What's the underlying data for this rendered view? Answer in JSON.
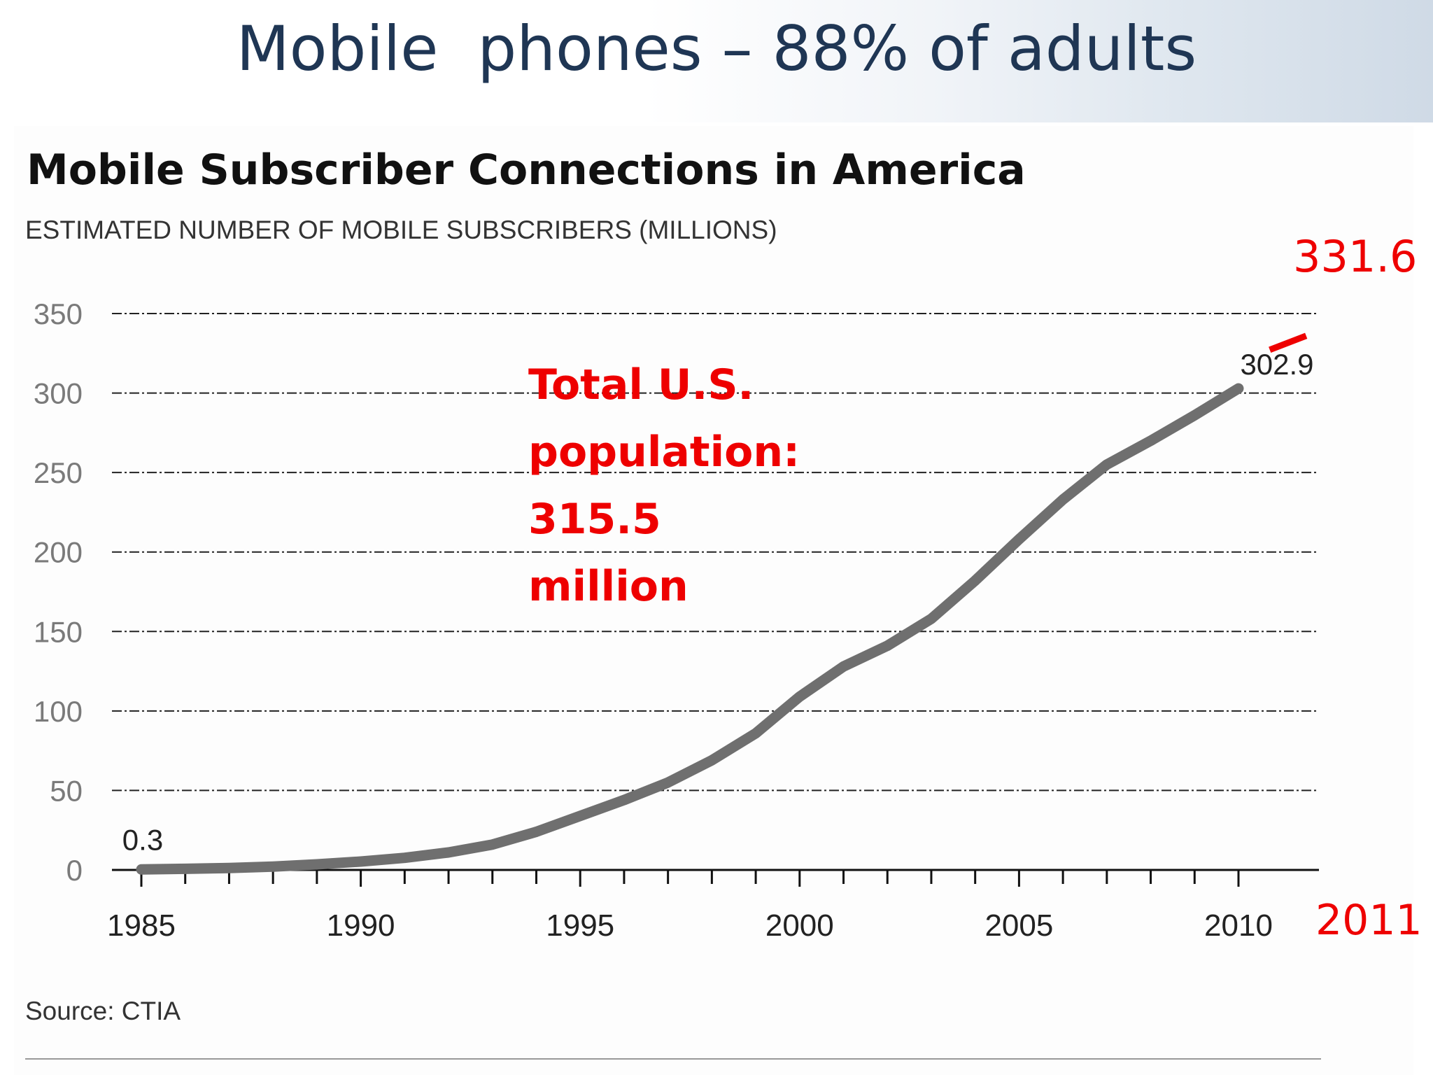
{
  "slide": {
    "title": "Mobile  phones – 88% of adults"
  },
  "chart_data": {
    "type": "line",
    "title": "Mobile Subscriber Connections in America",
    "subtitle": "ESTIMATED NUMBER OF MOBILE SUBSCRIBERS (MILLIONS)",
    "source": "Source: CTIA",
    "ylim": [
      0,
      350
    ],
    "yticks": [
      "0",
      "50",
      "100",
      "150",
      "200",
      "250",
      "300",
      "350"
    ],
    "xlim": [
      1985,
      2011
    ],
    "xtick_labels": [
      "1985",
      "1990",
      "1995",
      "2000",
      "2005",
      "2010"
    ],
    "grid": true,
    "series": [
      {
        "color": "#6f6f6f",
        "x": [
          1985,
          1986,
          1987,
          1988,
          1989,
          1990,
          1991,
          1992,
          1993,
          1994,
          1995,
          1996,
          1997,
          1998,
          1999,
          2000,
          2001,
          2002,
          2003,
          2004,
          2005,
          2006,
          2007,
          2008,
          2009,
          2010
        ],
        "values": [
          0.3,
          0.7,
          1.2,
          2.1,
          3.5,
          5.3,
          7.6,
          11,
          16,
          24,
          34,
          44,
          55,
          69,
          86,
          109,
          128,
          141,
          158,
          182,
          208,
          233,
          255,
          270,
          286,
          302.9
        ]
      }
    ],
    "data_labels": [
      {
        "x": 1985,
        "y": 0.3,
        "text": "0.3"
      },
      {
        "x": 2010,
        "y": 302.9,
        "text": "302.9"
      }
    ],
    "annotations": {
      "population": [
        "Total U.S.",
        "population:",
        "315.5",
        "million"
      ],
      "value_2011": "331.6",
      "year_2011": "2011",
      "color": "#ee0000"
    }
  }
}
